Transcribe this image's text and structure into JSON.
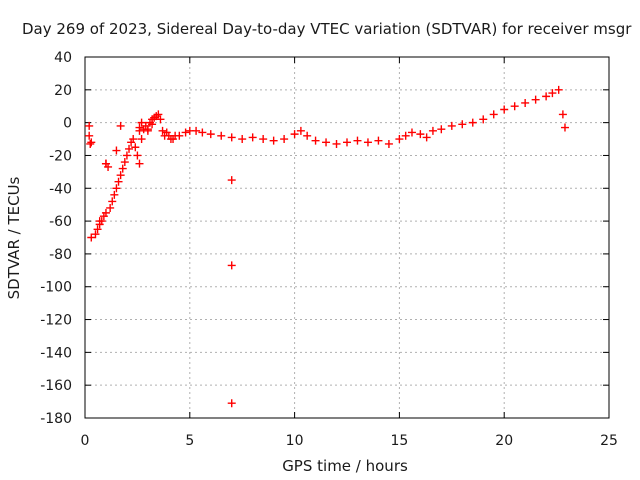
{
  "chart_data": {
    "type": "scatter",
    "title": "Day 269 of 2023, Sidereal Day-to-day VTEC variation (SDTVAR) for receiver msgr",
    "xlabel": "GPS time / hours",
    "ylabel": "SDTVAR / TECUs",
    "xlim": [
      0,
      25
    ],
    "ylim": [
      -180,
      40
    ],
    "xticks": [
      0,
      5,
      10,
      15,
      20,
      25
    ],
    "yticks": [
      40,
      20,
      0,
      -20,
      -40,
      -60,
      -80,
      -100,
      -120,
      -140,
      -160,
      -180
    ],
    "grid": true,
    "marker": "+",
    "series": [
      {
        "name": "SDTVAR",
        "color": "#ff0000",
        "x": [
          0.2,
          0.2,
          0.25,
          0.3,
          0.3,
          0.5,
          0.6,
          0.7,
          0.8,
          0.9,
          1.0,
          1.0,
          1.1,
          1.2,
          1.3,
          1.4,
          1.5,
          1.6,
          1.7,
          1.8,
          1.9,
          2.0,
          2.1,
          2.2,
          2.3,
          2.4,
          2.5,
          2.6,
          2.6,
          2.7,
          2.8,
          2.9,
          3.0,
          3.1,
          3.2,
          3.3,
          3.4,
          3.5,
          3.6,
          3.7,
          3.8,
          3.9,
          4.0,
          4.1,
          4.2,
          4.3,
          4.5,
          4.8,
          5.0,
          5.3,
          5.6,
          6.0,
          6.5,
          7.0,
          7.0,
          7.0,
          7.0,
          7.5,
          8.0,
          8.5,
          9.0,
          9.5,
          10.0,
          10.3,
          10.6,
          11.0,
          11.5,
          12.0,
          12.5,
          13.0,
          13.5,
          14.0,
          14.5,
          15.0,
          15.3,
          15.6,
          16.0,
          16.3,
          16.6,
          17.0,
          17.5,
          18.0,
          18.5,
          19.0,
          19.5,
          20.0,
          20.5,
          21.0,
          21.5,
          22.0,
          22.3,
          22.6,
          22.8,
          22.9,
          0.7,
          1.0,
          1.5,
          1.7,
          2.6,
          2.7,
          3.0,
          3.2
        ],
        "y": [
          -2,
          -8,
          -13,
          -12,
          -70,
          -68,
          -65,
          -62,
          -60,
          -57,
          -55,
          -25,
          -27,
          -52,
          -48,
          -44,
          -40,
          -36,
          -32,
          -28,
          -24,
          -20,
          -16,
          -12,
          -10,
          -15,
          -20,
          -25,
          -5,
          -10,
          -4,
          -2,
          -5,
          0,
          2,
          3,
          4,
          5,
          2,
          -5,
          -8,
          -6,
          -8,
          -10,
          -10,
          -8,
          -8,
          -6,
          -5,
          -5,
          -6,
          -7,
          -8,
          -9,
          -35,
          -87,
          -171,
          -10,
          -9,
          -10,
          -11,
          -10,
          -7,
          -5,
          -8,
          -11,
          -12,
          -13,
          -12,
          -11,
          -12,
          -11,
          -13,
          -10,
          -8,
          -6,
          -7,
          -9,
          -5,
          -4,
          -2,
          -1,
          0,
          2,
          5,
          8,
          10,
          12,
          14,
          16,
          18,
          20,
          5,
          -3,
          -60,
          -25,
          -17,
          -2,
          -3,
          0,
          -4,
          -1
        ]
      }
    ]
  }
}
